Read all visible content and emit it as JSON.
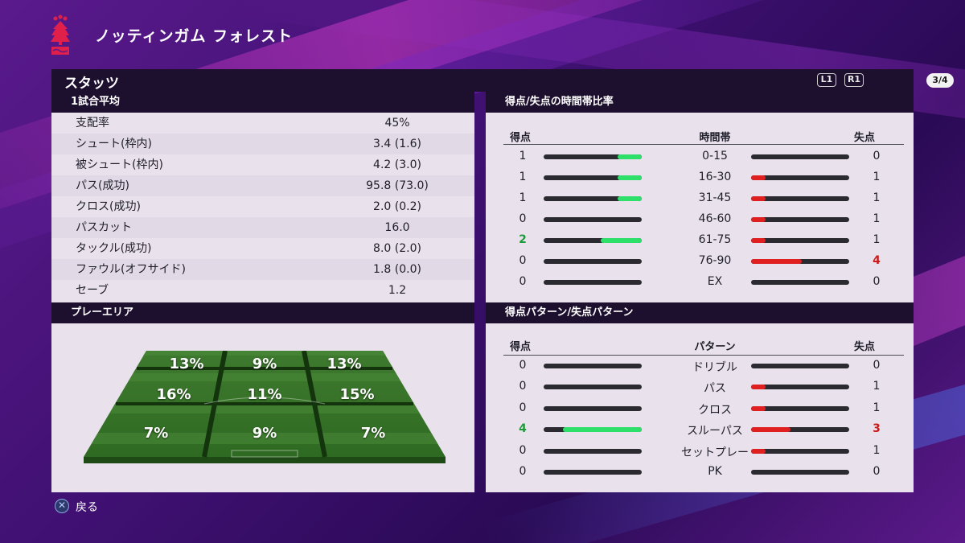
{
  "team": {
    "name": "ノッティンガム フォレスト"
  },
  "panel": {
    "title": "スタッツ",
    "l1": "L1",
    "r1": "R1",
    "page": "3/4"
  },
  "averages": {
    "title": "1試合平均",
    "rows": [
      {
        "label": "支配率",
        "value": "45%"
      },
      {
        "label": "シュート(枠内)",
        "value": "3.4 (1.6)"
      },
      {
        "label": "被シュート(枠内)",
        "value": "4.2 (3.0)"
      },
      {
        "label": "パス(成功)",
        "value": "95.8 (73.0)"
      },
      {
        "label": "クロス(成功)",
        "value": "2.0 (0.2)"
      },
      {
        "label": "パスカット",
        "value": "16.0"
      },
      {
        "label": "タックル(成功)",
        "value": "8.0 (2.0)"
      },
      {
        "label": "ファウル(オフサイド)",
        "value": "1.8 (0.0)"
      },
      {
        "label": "セーブ",
        "value": "1.2"
      }
    ]
  },
  "time_split": {
    "title": "得点/失点の時間帯比率",
    "col_scored": "得点",
    "col_mid": "時間帯",
    "col_conceded": "失点",
    "rows": [
      {
        "scored": "1",
        "label": "0-15",
        "conceded": "0",
        "scored_ratio": 0.25,
        "conceded_ratio": 0.0,
        "scored_hl": false,
        "conceded_hl": false
      },
      {
        "scored": "1",
        "label": "16-30",
        "conceded": "1",
        "scored_ratio": 0.25,
        "conceded_ratio": 0.15,
        "scored_hl": false,
        "conceded_hl": false
      },
      {
        "scored": "1",
        "label": "31-45",
        "conceded": "1",
        "scored_ratio": 0.25,
        "conceded_ratio": 0.15,
        "scored_hl": false,
        "conceded_hl": false
      },
      {
        "scored": "0",
        "label": "46-60",
        "conceded": "1",
        "scored_ratio": 0.0,
        "conceded_ratio": 0.15,
        "scored_hl": false,
        "conceded_hl": false
      },
      {
        "scored": "2",
        "label": "61-75",
        "conceded": "1",
        "scored_ratio": 0.42,
        "conceded_ratio": 0.15,
        "scored_hl": true,
        "conceded_hl": false
      },
      {
        "scored": "0",
        "label": "76-90",
        "conceded": "4",
        "scored_ratio": 0.0,
        "conceded_ratio": 0.52,
        "scored_hl": false,
        "conceded_hl": true
      },
      {
        "scored": "0",
        "label": "EX",
        "conceded": "0",
        "scored_ratio": 0.0,
        "conceded_ratio": 0.0,
        "scored_hl": false,
        "conceded_hl": false
      }
    ]
  },
  "play_area": {
    "title": "プレーエリア",
    "zones": [
      [
        "13%",
        "9%",
        "13%"
      ],
      [
        "16%",
        "11%",
        "15%"
      ],
      [
        "7%",
        "9%",
        "7%"
      ]
    ]
  },
  "pattern_split": {
    "title": "得点パターン/失点パターン",
    "col_scored": "得点",
    "col_mid": "パターン",
    "col_conceded": "失点",
    "rows": [
      {
        "scored": "0",
        "label": "ドリブル",
        "conceded": "0",
        "scored_ratio": 0.0,
        "conceded_ratio": 0.0,
        "scored_hl": false,
        "conceded_hl": false
      },
      {
        "scored": "0",
        "label": "パス",
        "conceded": "1",
        "scored_ratio": 0.0,
        "conceded_ratio": 0.15,
        "scored_hl": false,
        "conceded_hl": false
      },
      {
        "scored": "0",
        "label": "クロス",
        "conceded": "1",
        "scored_ratio": 0.0,
        "conceded_ratio": 0.15,
        "scored_hl": false,
        "conceded_hl": false
      },
      {
        "scored": "4",
        "label": "スルーパス",
        "conceded": "3",
        "scored_ratio": 0.8,
        "conceded_ratio": 0.4,
        "scored_hl": true,
        "conceded_hl": true
      },
      {
        "scored": "0",
        "label": "セットプレー",
        "conceded": "1",
        "scored_ratio": 0.0,
        "conceded_ratio": 0.15,
        "scored_hl": false,
        "conceded_hl": false
      },
      {
        "scored": "0",
        "label": "PK",
        "conceded": "0",
        "scored_ratio": 0.0,
        "conceded_ratio": 0.0,
        "scored_hl": false,
        "conceded_hl": false
      }
    ]
  },
  "footer": {
    "back_label": "戻る",
    "back_icon": "cross-button-icon"
  },
  "colors": {
    "accent_green": "#2ee06a",
    "accent_red": "#e02020",
    "header_dark": "#1d0f2e",
    "crest_red": "#e0204a"
  }
}
